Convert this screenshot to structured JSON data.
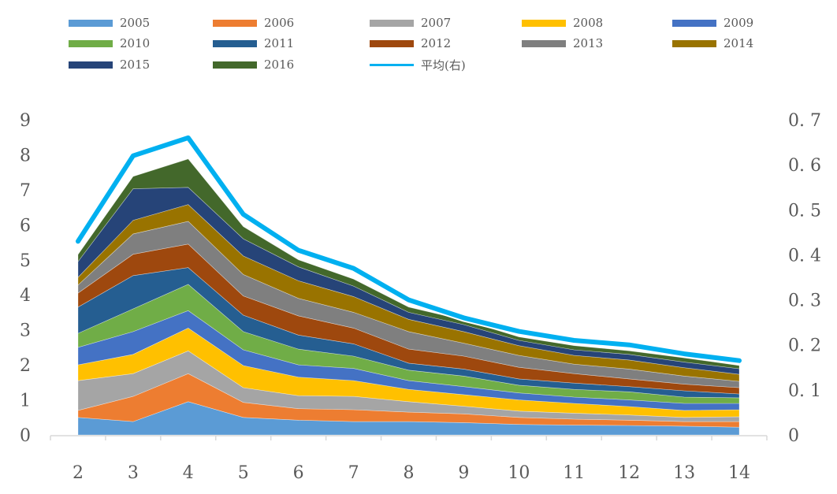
{
  "chart_data": {
    "type": "area",
    "stacked": true,
    "title": "",
    "xlabel": "",
    "ylabel": "",
    "categories": [
      "2",
      "3",
      "4",
      "5",
      "6",
      "7",
      "8",
      "9",
      "10",
      "11",
      "12",
      "13",
      "14"
    ],
    "ylim": [
      0,
      9
    ],
    "y_ticks": [
      "0",
      "1",
      "2",
      "3",
      "4",
      "5",
      "6",
      "7",
      "8",
      "9"
    ],
    "y2lim": [
      0,
      0.7
    ],
    "y2_ticks": [
      "0",
      "0. 1",
      "0. 2",
      "0. 3",
      "0. 4",
      "0. 5",
      "0. 6",
      "0. 7"
    ],
    "grid": false,
    "legend_position": "top",
    "series": [
      {
        "name": "2005",
        "color": "#5B9BD5",
        "values": [
          0.5,
          0.38,
          0.95,
          0.5,
          0.42,
          0.38,
          0.38,
          0.35,
          0.3,
          0.28,
          0.27,
          0.25,
          0.22
        ]
      },
      {
        "name": "2006",
        "color": "#ED7D31",
        "values": [
          0.2,
          0.72,
          0.8,
          0.43,
          0.33,
          0.34,
          0.27,
          0.25,
          0.2,
          0.17,
          0.15,
          0.13,
          0.16
        ]
      },
      {
        "name": "2007",
        "color": "#A5A5A5",
        "values": [
          0.85,
          0.65,
          0.65,
          0.42,
          0.37,
          0.38,
          0.3,
          0.22,
          0.18,
          0.17,
          0.15,
          0.12,
          0.14
        ]
      },
      {
        "name": "2008",
        "color": "#FFC000",
        "values": [
          0.45,
          0.55,
          0.65,
          0.63,
          0.53,
          0.45,
          0.35,
          0.33,
          0.32,
          0.28,
          0.24,
          0.2,
          0.2
        ]
      },
      {
        "name": "2009",
        "color": "#4472C4",
        "values": [
          0.5,
          0.65,
          0.5,
          0.45,
          0.35,
          0.35,
          0.25,
          0.23,
          0.2,
          0.18,
          0.19,
          0.2,
          0.18
        ]
      },
      {
        "name": "2010",
        "color": "#70AD47",
        "values": [
          0.4,
          0.65,
          0.75,
          0.52,
          0.45,
          0.35,
          0.3,
          0.3,
          0.22,
          0.22,
          0.23,
          0.18,
          0.16
        ]
      },
      {
        "name": "2011",
        "color": "#255E91",
        "values": [
          0.75,
          0.95,
          0.48,
          0.47,
          0.4,
          0.35,
          0.2,
          0.2,
          0.18,
          0.18,
          0.15,
          0.18,
          0.11
        ]
      },
      {
        "name": "2012",
        "color": "#9E480E",
        "values": [
          0.4,
          0.61,
          0.67,
          0.55,
          0.55,
          0.45,
          0.4,
          0.37,
          0.33,
          0.27,
          0.22,
          0.19,
          0.18
        ]
      },
      {
        "name": "2013",
        "color": "#7F7F7F",
        "values": [
          0.23,
          0.58,
          0.65,
          0.61,
          0.5,
          0.45,
          0.5,
          0.37,
          0.34,
          0.27,
          0.28,
          0.23,
          0.18
        ]
      },
      {
        "name": "2014",
        "color": "#997300",
        "values": [
          0.22,
          0.39,
          0.48,
          0.53,
          0.5,
          0.45,
          0.35,
          0.33,
          0.28,
          0.25,
          0.26,
          0.24,
          0.2
        ]
      },
      {
        "name": "2015",
        "color": "#264478",
        "values": [
          0.45,
          0.9,
          0.49,
          0.49,
          0.4,
          0.3,
          0.2,
          0.2,
          0.15,
          0.16,
          0.16,
          0.16,
          0.16
        ]
      },
      {
        "name": "2016",
        "color": "#43682B",
        "values": [
          0.2,
          0.35,
          0.81,
          0.35,
          0.2,
          0.2,
          0.15,
          0.13,
          0.1,
          0.12,
          0.1,
          0.12,
          0.09
        ]
      }
    ],
    "line_series": {
      "name": "平均(右)",
      "color": "#00B0F0",
      "axis": "right",
      "values": [
        0.43,
        0.62,
        0.66,
        0.49,
        0.41,
        0.37,
        0.3,
        0.26,
        0.23,
        0.21,
        0.2,
        0.18,
        0.165
      ]
    }
  }
}
